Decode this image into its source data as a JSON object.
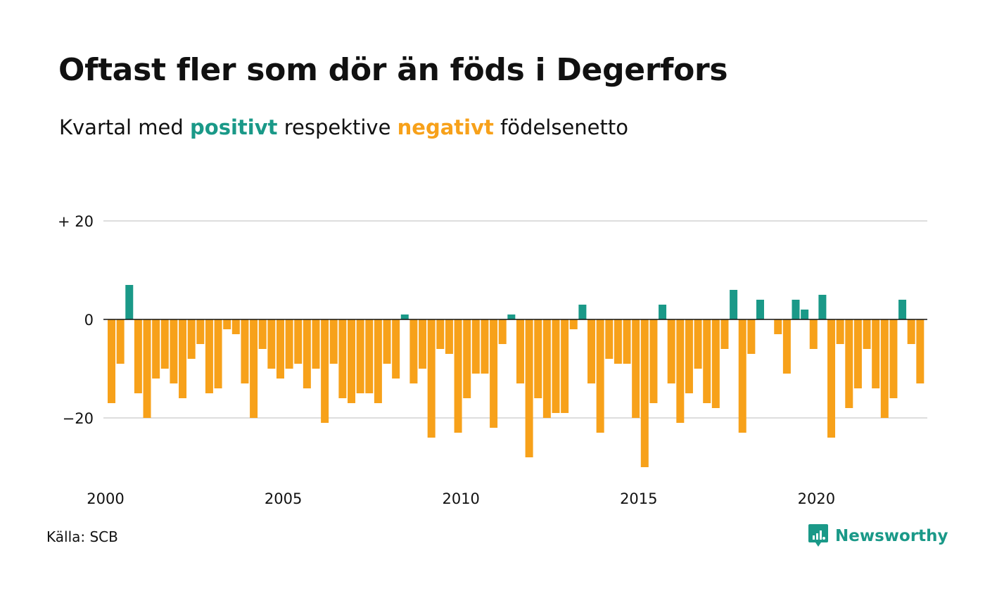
{
  "title": "Oftast fler som dör än föds i Degerfors",
  "subtitle": {
    "prefix": "Kvartal med",
    "positive_word": "positivt",
    "middle": "respektive",
    "negative_word": "negativt",
    "suffix": "födelsenetto"
  },
  "colors": {
    "positive": "#1a9988",
    "negative": "#f7a11a",
    "grid": "#dddddd",
    "baseline": "#111111"
  },
  "source": "Källa: SCB",
  "brand": {
    "name": "Newsworthy",
    "icon": "newsworthy-logo-icon"
  },
  "chart_data": {
    "type": "bar",
    "x_start_year": 2000,
    "quarters_per_year": 4,
    "x_tick_labels": [
      "2000",
      "2005",
      "2010",
      "2015",
      "2020"
    ],
    "y_ticks": [
      {
        "value": 20,
        "label": "+ 20"
      },
      {
        "value": 0,
        "label": "0"
      },
      {
        "value": -20,
        "label": "−20"
      }
    ],
    "ylim": [
      -30,
      20
    ],
    "grid": true,
    "values": [
      -17,
      -9,
      7,
      -15,
      -20,
      -12,
      -10,
      -13,
      -16,
      -8,
      -5,
      -15,
      -14,
      -2,
      -3,
      -13,
      -20,
      -6,
      -10,
      -12,
      -10,
      -9,
      -14,
      -10,
      -21,
      -9,
      -16,
      -17,
      -15,
      -15,
      -17,
      -9,
      -12,
      1,
      -13,
      -10,
      -24,
      -6,
      -7,
      -23,
      -16,
      -11,
      -11,
      -22,
      -5,
      1,
      -13,
      -28,
      -16,
      -20,
      -19,
      -19,
      -2,
      3,
      -13,
      -23,
      -8,
      -9,
      -9,
      -20,
      -30,
      -17,
      3,
      -13,
      -21,
      -15,
      -10,
      -17,
      -18,
      -6,
      6,
      -23,
      -7,
      4,
      0,
      -3,
      -11,
      4,
      2,
      -6,
      5,
      -24,
      -5,
      -18,
      -14,
      -6,
      -14,
      -20,
      -16,
      4,
      -5,
      -13
    ]
  }
}
